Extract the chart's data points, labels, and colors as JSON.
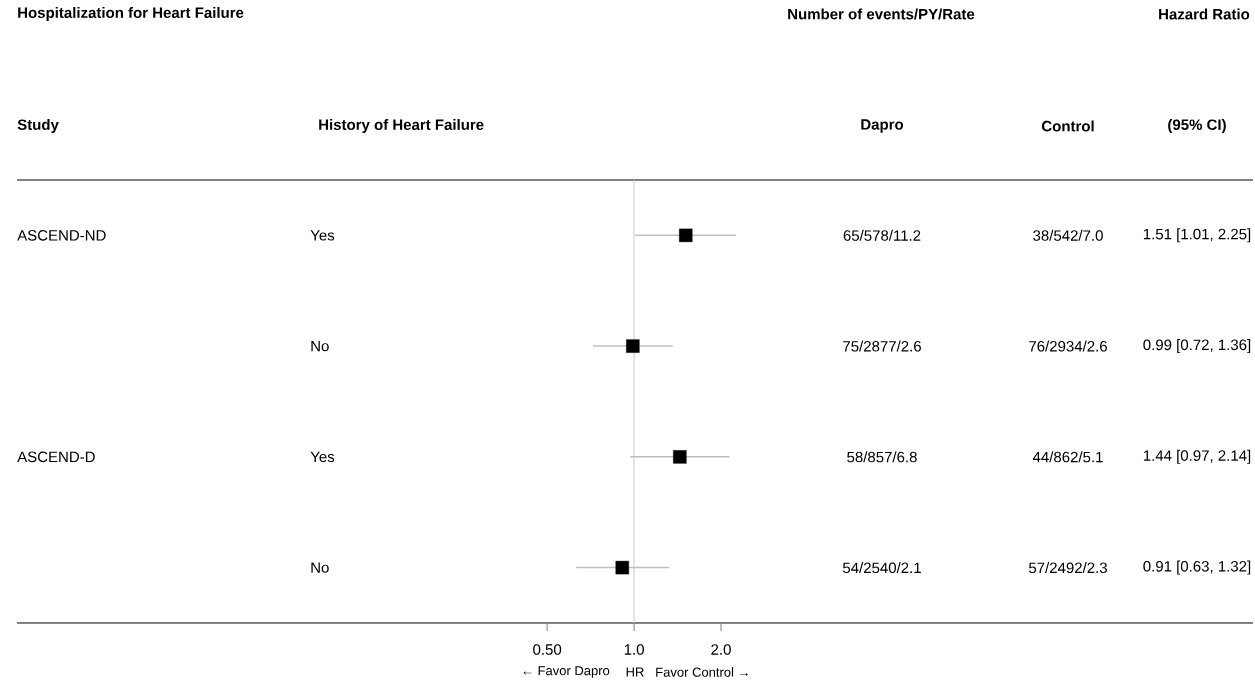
{
  "chart_data": {
    "type": "scatter",
    "orientation": "horizontal",
    "title": "Hospitalization for Heart Failure",
    "xlabel": "HR",
    "categories": [
      "Yes",
      "No",
      "Yes",
      "No"
    ],
    "values": [
      1.51,
      0.99,
      1.44,
      0.91
    ],
    "errors": [
      [
        1.01,
        2.25
      ],
      [
        0.72,
        1.36
      ],
      [
        0.97,
        2.14
      ],
      [
        0.63,
        1.32
      ]
    ],
    "color": "#000000",
    "marker": "square",
    "log": "x",
    "xlim": [
      0.0073,
      139
    ],
    "xticks": [
      {
        "value": 0.5,
        "label": "0.50"
      },
      {
        "value": 1,
        "label": "1.0"
      },
      {
        "value": 2,
        "label": "2.0"
      }
    ],
    "ref_lines": [
      {
        "axis": "x",
        "value": 1,
        "color": "#cccccc"
      }
    ],
    "annotations": [
      "Number of events/PY/Rate",
      "Hazard Ratio",
      "Study",
      "History of Heart Failure",
      "Dapro",
      "Control",
      "(95% CI)",
      "ASCEND-ND",
      "ASCEND-D",
      "65/578/11.2",
      "38/542/7.0",
      "1.51 [1.01, 2.25]",
      "75/2877/2.6",
      "76/2934/2.6",
      "0.99 [0.72, 1.36]",
      "58/857/6.8",
      "44/862/5.1",
      "1.44 [0.97, 2.14]",
      "54/2540/2.1",
      "57/2492/2.3",
      "0.91 [0.63, 1.32]",
      "← Favor Dapro",
      "Favor Control →"
    ],
    "grid": false
  }
}
